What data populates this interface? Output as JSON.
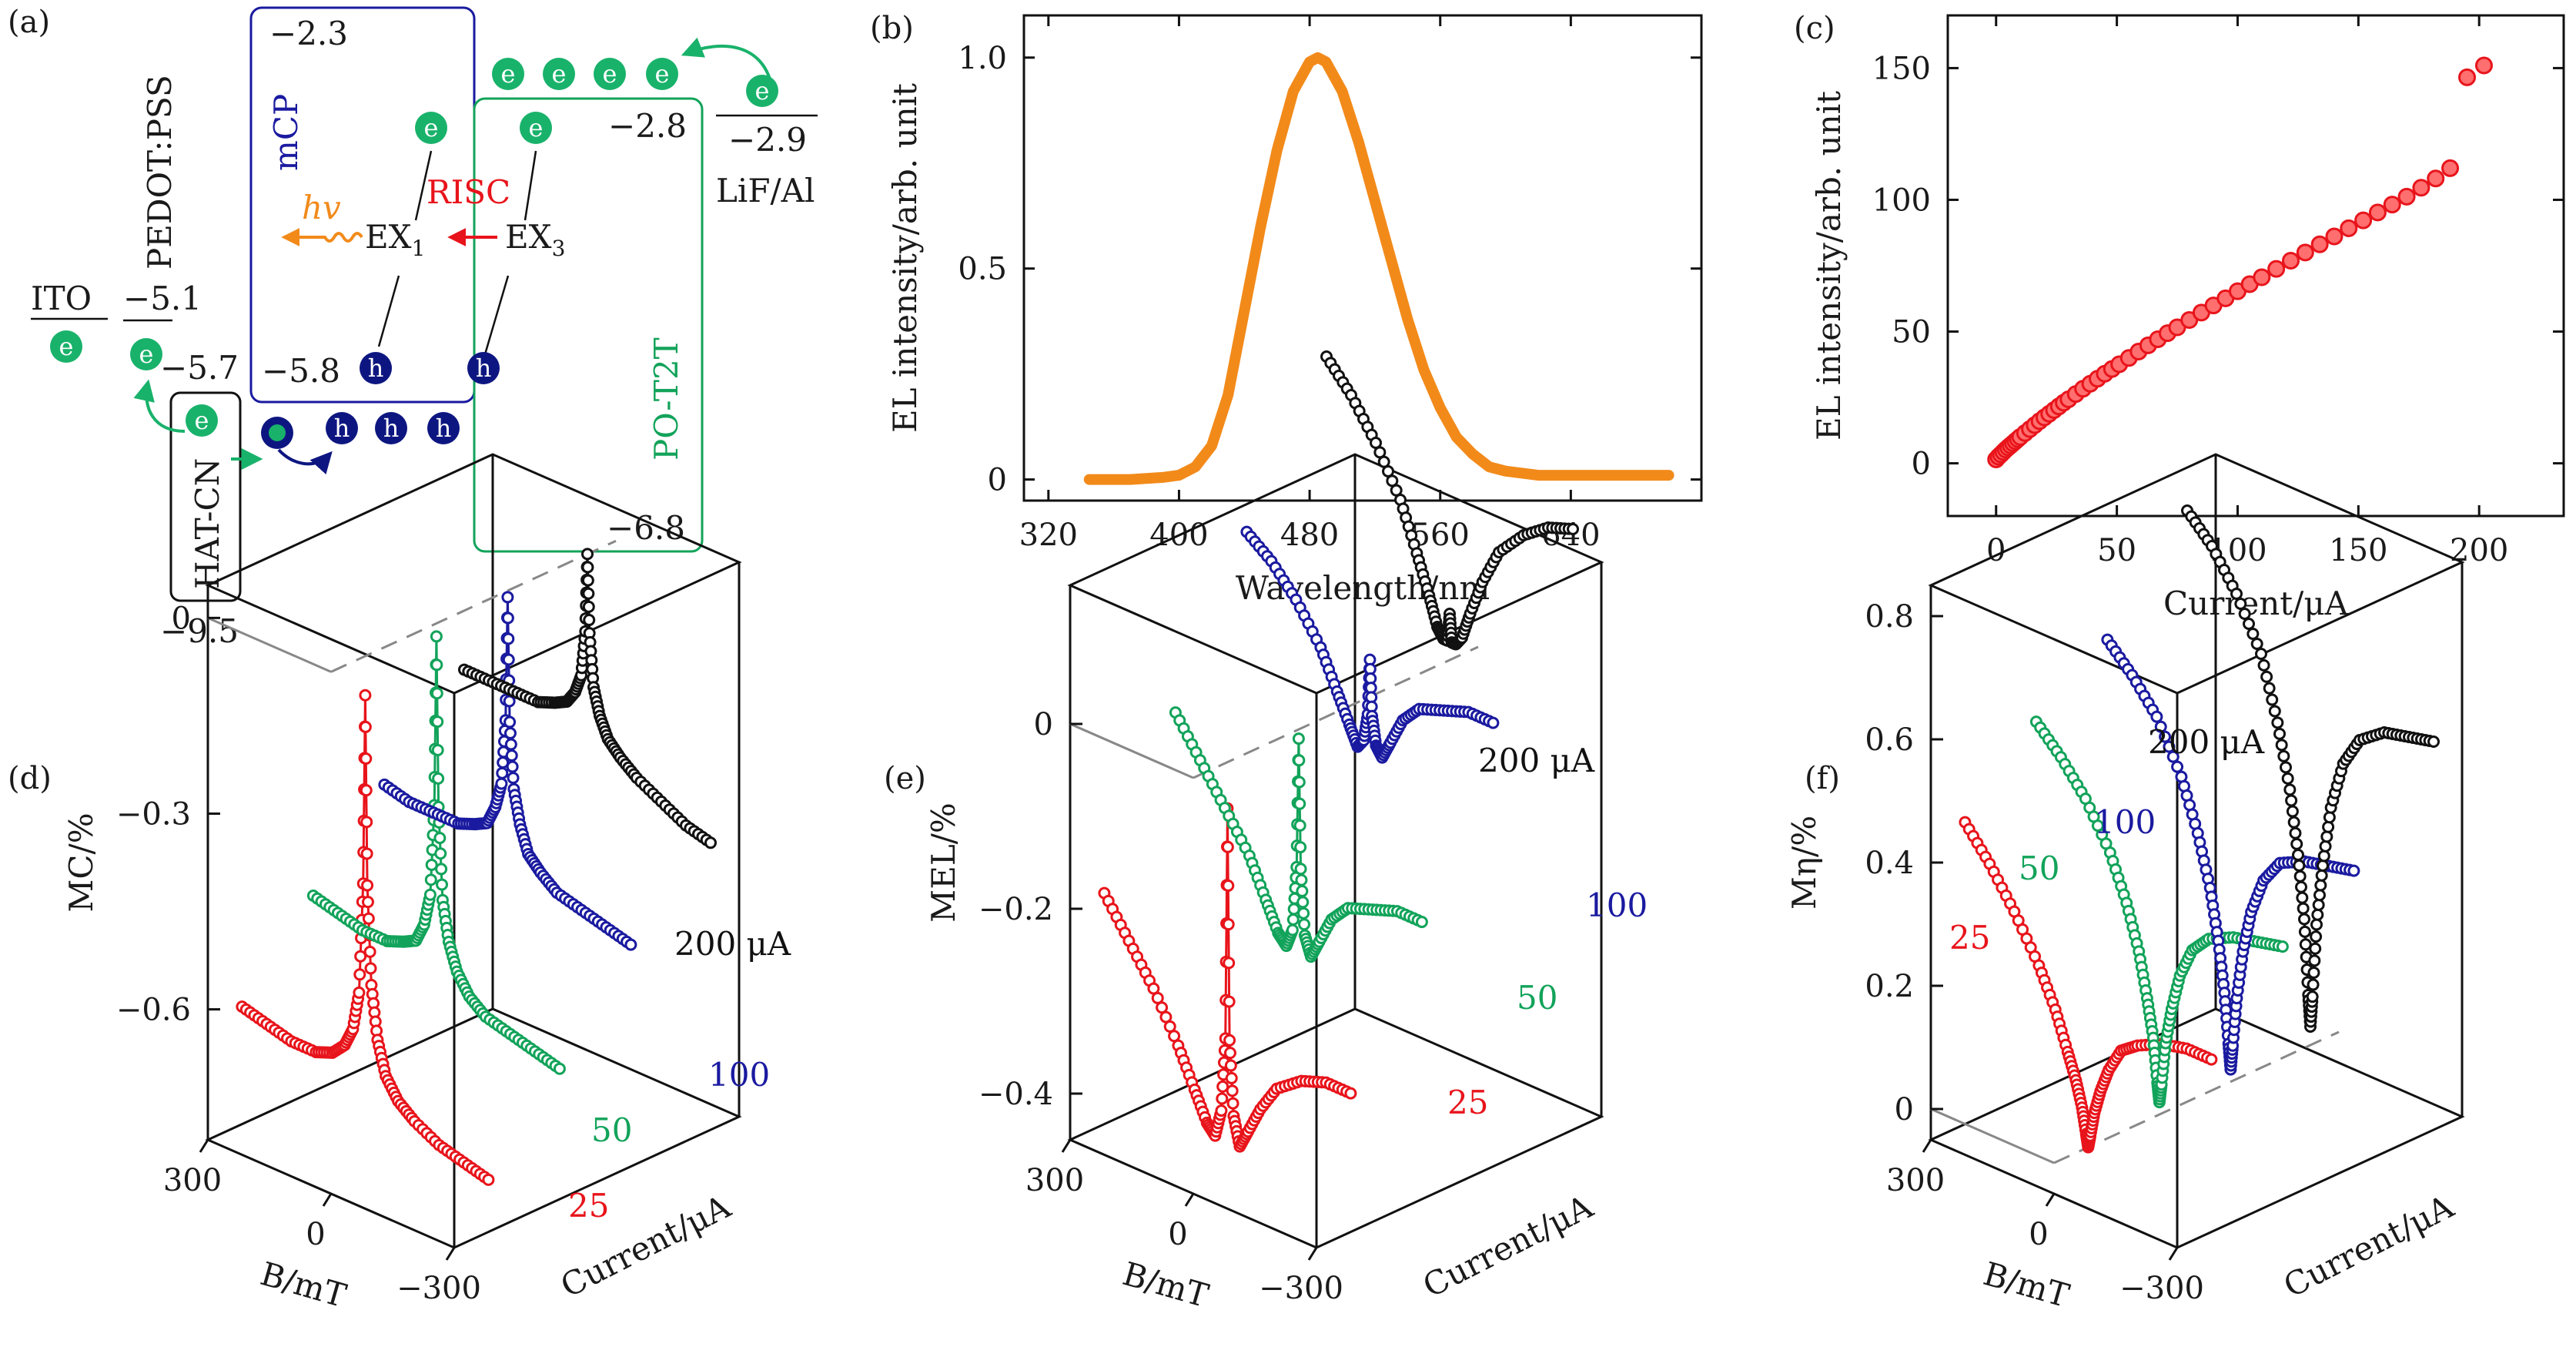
{
  "colors": {
    "orange": "#f28a1a",
    "red": "#e8141b",
    "green": "#12a35a",
    "blue": "#1a1aa0",
    "dark_blue": "#0d1680",
    "black": "#111111",
    "mint": "#19b26b",
    "grid_dash": "#8a8a8a"
  },
  "panel_a": {
    "label": "(a)",
    "ito": "ITO",
    "pedot": "PEDOT:PSS",
    "mcp": "mCP",
    "hatcn": "HAT-CN",
    "pot2t": "PO-T2T",
    "lifal": "LiF/Al",
    "lv_mcp_top": "−2.3",
    "lv_pot2t_top": "−2.8",
    "lv_lif": "−2.9",
    "lv_pedot": "−5.1",
    "lv_hatcn_top": "−5.7",
    "lv_mcp_bottom": "−5.8",
    "lv_pot2t_bottom": "−6.8",
    "lv_hatcn_bottom": "−9.5",
    "hv": "hv",
    "risc": "RISC",
    "ex1": "EX",
    "ex1_sub": "1",
    "ex3": "EX",
    "ex3_sub": "3",
    "e": "e",
    "h": "h"
  },
  "chart_data": [
    {
      "id": "b",
      "panel_label": "(b)",
      "type": "line",
      "xlabel": "Wavelength/nm",
      "ylabel": "EL intensity/arb. unit",
      "xlim": [
        305,
        720
      ],
      "ylim": [
        -0.05,
        1.1
      ],
      "xticks": [
        320,
        400,
        480,
        560,
        640
      ],
      "yticks": [
        0,
        0.5,
        1.0
      ],
      "ytick_labels": [
        "0",
        "0.5",
        "1.0"
      ],
      "series": [
        {
          "color": "#f28a1a",
          "x": [
            345,
            370,
            390,
            400,
            410,
            420,
            430,
            440,
            450,
            460,
            470,
            480,
            485,
            490,
            500,
            510,
            520,
            530,
            540,
            550,
            560,
            570,
            580,
            590,
            600,
            620,
            640,
            660,
            680,
            700
          ],
          "y": [
            0.0,
            0.0,
            0.005,
            0.01,
            0.03,
            0.08,
            0.2,
            0.4,
            0.6,
            0.78,
            0.92,
            0.99,
            1.0,
            0.99,
            0.92,
            0.8,
            0.66,
            0.52,
            0.38,
            0.26,
            0.17,
            0.1,
            0.06,
            0.03,
            0.02,
            0.01,
            0.01,
            0.01,
            0.01,
            0.01
          ]
        }
      ]
    },
    {
      "id": "c",
      "panel_label": "(c)",
      "type": "scatter",
      "xlabel": "Current/μA",
      "ylabel": "EL intensity/arb. unit",
      "xlim": [
        -20,
        235
      ],
      "ylim": [
        -20,
        170
      ],
      "xticks": [
        0,
        50,
        100,
        150,
        200
      ],
      "yticks": [
        0,
        50,
        100,
        150
      ],
      "series": [
        {
          "color": "#e8141b",
          "x": [
            0,
            1,
            2,
            3,
            4,
            5,
            6,
            7,
            8,
            9,
            10,
            12,
            14,
            16,
            18,
            20,
            22,
            24,
            26,
            28,
            30,
            33,
            36,
            39,
            42,
            45,
            48,
            51,
            55,
            59,
            63,
            67,
            71,
            75,
            80,
            85,
            90,
            95,
            100,
            105,
            110,
            116,
            122,
            128,
            134,
            140,
            146,
            152,
            158,
            164,
            170,
            176,
            182,
            188,
            195,
            202
          ],
          "y": [
            1.5,
            2.5,
            3.4,
            4.3,
            5.2,
            6.0,
            6.8,
            7.6,
            8.4,
            9.2,
            10.0,
            11.5,
            13.0,
            14.5,
            16.0,
            17.4,
            18.8,
            20.2,
            21.6,
            23.0,
            24.3,
            26.3,
            28.3,
            30.2,
            32.1,
            34.0,
            35.8,
            37.6,
            40.0,
            42.4,
            44.8,
            47.1,
            49.4,
            51.6,
            54.4,
            57.2,
            59.9,
            62.6,
            65.3,
            68.0,
            70.6,
            73.8,
            76.9,
            80.0,
            83.1,
            86.1,
            89.2,
            92.2,
            95.2,
            98.2,
            101.2,
            104.6,
            108.1,
            112.0,
            146.5,
            151.0
          ]
        }
      ]
    },
    {
      "id": "d",
      "panel_label": "(d)",
      "type": "line",
      "ylabel": "MC/%",
      "xlabel": "B/mT",
      "zlabel": "Current/μA",
      "ylim": [
        -0.8,
        0.05
      ],
      "yticks": [
        0,
        -0.3,
        -0.6
      ],
      "ytick_labels": [
        "0",
        "−0.3",
        "−0.6"
      ],
      "xticks": [
        300,
        0,
        -300
      ],
      "xtick_labels": [
        "300",
        "0",
        "−300"
      ],
      "series": [
        {
          "name": "25",
          "color": "#e8141b",
          "b": [
            300,
            240,
            180,
            120,
            80,
            50,
            30,
            15,
            5,
            0,
            -5,
            -15,
            -30,
            -50,
            -80,
            -120,
            -180,
            -240,
            -300
          ],
          "y": [
            -0.62,
            -0.63,
            -0.64,
            -0.64,
            -0.63,
            -0.61,
            -0.58,
            -0.52,
            -0.35,
            -0.06,
            -0.35,
            -0.5,
            -0.58,
            -0.63,
            -0.66,
            -0.68,
            -0.7,
            -0.71,
            -0.72
          ]
        },
        {
          "name": "50",
          "color": "#12a35a",
          "b": [
            300,
            240,
            180,
            120,
            80,
            50,
            30,
            15,
            5,
            0,
            -5,
            -15,
            -30,
            -50,
            -80,
            -120,
            -180,
            -240,
            -300
          ],
          "y": [
            -0.5,
            -0.51,
            -0.52,
            -0.52,
            -0.51,
            -0.5,
            -0.47,
            -0.42,
            -0.28,
            -0.02,
            -0.28,
            -0.42,
            -0.48,
            -0.52,
            -0.55,
            -0.57,
            -0.58,
            -0.59,
            -0.6
          ]
        },
        {
          "name": "100",
          "color": "#1a1aa0",
          "b": [
            300,
            240,
            180,
            120,
            80,
            50,
            30,
            15,
            5,
            0,
            -5,
            -15,
            -30,
            -50,
            -80,
            -120,
            -180,
            -240,
            -300
          ],
          "y": [
            -0.38,
            -0.39,
            -0.39,
            -0.39,
            -0.38,
            -0.37,
            -0.34,
            -0.3,
            -0.2,
            -0.01,
            -0.2,
            -0.3,
            -0.35,
            -0.39,
            -0.41,
            -0.43,
            -0.44,
            -0.45,
            -0.46
          ]
        },
        {
          "name": "200 μA",
          "color": "#111111",
          "b": [
            300,
            240,
            180,
            120,
            80,
            50,
            30,
            15,
            5,
            0,
            -5,
            -15,
            -30,
            -50,
            -80,
            -120,
            -180,
            -240,
            -300
          ],
          "y": [
            -0.26,
            -0.26,
            -0.26,
            -0.26,
            -0.25,
            -0.24,
            -0.22,
            -0.19,
            -0.12,
            0.0,
            -0.12,
            -0.2,
            -0.24,
            -0.27,
            -0.29,
            -0.31,
            -0.33,
            -0.35,
            -0.36
          ]
        }
      ]
    },
    {
      "id": "e",
      "panel_label": "(e)",
      "type": "line",
      "ylabel": "MEL/%",
      "xlabel": "B/mT",
      "zlabel": "Current/μA",
      "ylim": [
        -0.45,
        0.15
      ],
      "yticks": [
        0,
        -0.2,
        -0.4
      ],
      "ytick_labels": [
        "0",
        "−0.2",
        "−0.4"
      ],
      "xticks": [
        300,
        0,
        -300
      ],
      "xtick_labels": [
        "300",
        "0",
        "−300"
      ],
      "series": [
        {
          "name": "25",
          "color": "#e8141b",
          "b": [
            300,
            240,
            180,
            120,
            80,
            50,
            30,
            15,
            5,
            0,
            -5,
            -15,
            -30,
            -50,
            -80,
            -120,
            -180,
            -240,
            -300
          ],
          "y": [
            -0.2,
            -0.24,
            -0.28,
            -0.33,
            -0.37,
            -0.4,
            -0.41,
            -0.38,
            -0.3,
            -0.05,
            -0.3,
            -0.38,
            -0.41,
            -0.39,
            -0.36,
            -0.33,
            -0.31,
            -0.3,
            -0.3
          ]
        },
        {
          "name": "50",
          "color": "#12a35a",
          "b": [
            300,
            240,
            180,
            120,
            80,
            50,
            30,
            15,
            5,
            0,
            -5,
            -15,
            -30,
            -50,
            -80,
            -120,
            -180,
            -240,
            -300
          ],
          "y": [
            -0.04,
            -0.08,
            -0.12,
            -0.16,
            -0.2,
            -0.23,
            -0.24,
            -0.22,
            -0.15,
            -0.01,
            -0.15,
            -0.22,
            -0.24,
            -0.22,
            -0.19,
            -0.17,
            -0.16,
            -0.15,
            -0.15
          ]
        },
        {
          "name": "100",
          "color": "#1a1aa0",
          "b": [
            300,
            240,
            180,
            120,
            80,
            50,
            30,
            15,
            5,
            0,
            -5,
            -15,
            -30,
            -50,
            -80,
            -120,
            -180,
            -240,
            -300
          ],
          "y": [
            0.12,
            0.1,
            0.07,
            0.03,
            -0.01,
            -0.04,
            -0.06,
            -0.05,
            -0.02,
            0.04,
            -0.02,
            -0.05,
            -0.06,
            -0.04,
            -0.01,
            0.01,
            0.02,
            0.03,
            0.03
          ]
        },
        {
          "name": "200 μA",
          "color": "#111111",
          "b": [
            300,
            240,
            180,
            120,
            80,
            50,
            30,
            15,
            5,
            0,
            -5,
            -15,
            -30,
            -50,
            -80,
            -120,
            -180,
            -240,
            -300
          ],
          "y": [
            0.27,
            0.24,
            0.2,
            0.15,
            0.1,
            0.06,
            0.03,
            0.02,
            0.02,
            0.05,
            0.02,
            0.02,
            0.03,
            0.06,
            0.1,
            0.14,
            0.17,
            0.19,
            0.2
          ]
        }
      ]
    },
    {
      "id": "f",
      "panel_label": "(f)",
      "type": "line",
      "ylabel": "Mη/%",
      "xlabel": "B/mT",
      "zlabel": "Current/μA",
      "ylim": [
        -0.05,
        0.85
      ],
      "yticks": [
        0,
        0.2,
        0.4,
        0.6,
        0.8
      ],
      "ytick_labels": [
        "0",
        "0.2",
        "0.4",
        "0.6",
        "0.8"
      ],
      "xticks": [
        300,
        0,
        -300
      ],
      "xtick_labels": [
        "300",
        "0",
        "−300"
      ],
      "series": [
        {
          "name": "25",
          "color": "#e8141b",
          "b": [
            300,
            240,
            180,
            120,
            80,
            50,
            30,
            15,
            5,
            0,
            -5,
            -15,
            -30,
            -50,
            -80,
            -120,
            -180,
            -240,
            -300
          ],
          "y": [
            0.44,
            0.39,
            0.33,
            0.26,
            0.2,
            0.14,
            0.1,
            0.06,
            0.02,
            0.0,
            0.02,
            0.06,
            0.1,
            0.14,
            0.18,
            0.2,
            0.22,
            0.23,
            0.23
          ]
        },
        {
          "name": "50",
          "color": "#12a35a",
          "b": [
            300,
            240,
            180,
            120,
            80,
            50,
            30,
            15,
            5,
            0,
            -5,
            -15,
            -30,
            -50,
            -80,
            -120,
            -180,
            -240,
            -300
          ],
          "y": [
            0.55,
            0.51,
            0.46,
            0.39,
            0.32,
            0.25,
            0.18,
            0.12,
            0.05,
            0.02,
            0.05,
            0.12,
            0.18,
            0.24,
            0.29,
            0.32,
            0.34,
            0.35,
            0.36
          ]
        },
        {
          "name": "100",
          "color": "#1a1aa0",
          "b": [
            300,
            240,
            180,
            120,
            80,
            50,
            30,
            15,
            5,
            0,
            -5,
            -15,
            -30,
            -50,
            -80,
            -120,
            -180,
            -240,
            -300
          ],
          "y": [
            0.63,
            0.59,
            0.54,
            0.46,
            0.38,
            0.3,
            0.22,
            0.14,
            0.06,
            0.02,
            0.06,
            0.14,
            0.22,
            0.29,
            0.35,
            0.39,
            0.41,
            0.42,
            0.43
          ]
        },
        {
          "name": "200 μA",
          "color": "#111111",
          "b": [
            300,
            240,
            180,
            120,
            80,
            50,
            30,
            15,
            5,
            0,
            -5,
            -15,
            -30,
            -50,
            -80,
            -120,
            -180,
            -240,
            -300
          ],
          "y": [
            0.78,
            0.74,
            0.68,
            0.6,
            0.5,
            0.4,
            0.3,
            0.2,
            0.08,
            0.03,
            0.08,
            0.2,
            0.3,
            0.4,
            0.48,
            0.53,
            0.56,
            0.57,
            0.58
          ]
        }
      ]
    }
  ]
}
